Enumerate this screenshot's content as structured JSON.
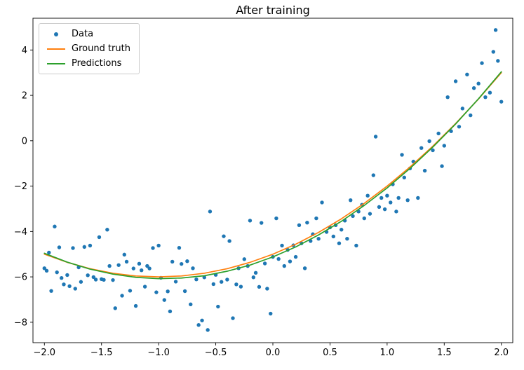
{
  "title": "After training",
  "legend": {
    "items": [
      {
        "label": "Data",
        "marker": "dot",
        "color": "#1f77b4"
      },
      {
        "label": "Ground truth",
        "marker": "line",
        "color": "#ff7f0e"
      },
      {
        "label": "Predictions",
        "marker": "line",
        "color": "#2ca02c"
      }
    ]
  },
  "chart_data": {
    "type": "scatter",
    "title": "After training",
    "xlabel": "",
    "ylabel": "",
    "xlim": [
      -2.1,
      2.1
    ],
    "ylim": [
      -8.9,
      5.4
    ],
    "grid": false,
    "legend_position": "upper left",
    "xticks": [
      -2.0,
      -1.5,
      -1.0,
      -0.5,
      0.0,
      0.5,
      1.0,
      1.5,
      2.0
    ],
    "xtick_labels": [
      "−2.0",
      "−1.5",
      "−1.0",
      "−0.5",
      "0.0",
      "0.5",
      "1.0",
      "1.5",
      "2.0"
    ],
    "yticks": [
      -8,
      -6,
      -4,
      -2,
      0,
      2,
      4
    ],
    "ytick_labels": [
      "−8",
      "−6",
      "−4",
      "−2",
      "0",
      "2",
      "4"
    ],
    "series": [
      {
        "name": "Data",
        "type": "scatter",
        "color": "#1f77b4",
        "points": [
          [
            -2.0,
            -5.62
          ],
          [
            -1.98,
            -5.73
          ],
          [
            -1.96,
            -4.93
          ],
          [
            -1.94,
            -6.62
          ],
          [
            -1.91,
            -3.78
          ],
          [
            -1.89,
            -5.8
          ],
          [
            -1.87,
            -4.7
          ],
          [
            -1.85,
            -6.05
          ],
          [
            -1.83,
            -6.33
          ],
          [
            -1.8,
            -5.92
          ],
          [
            -1.78,
            -6.41
          ],
          [
            -1.75,
            -4.73
          ],
          [
            -1.73,
            -6.52
          ],
          [
            -1.7,
            -5.58
          ],
          [
            -1.68,
            -6.22
          ],
          [
            -1.65,
            -4.68
          ],
          [
            -1.62,
            -5.93
          ],
          [
            -1.6,
            -4.62
          ],
          [
            -1.57,
            -6.01
          ],
          [
            -1.55,
            -6.12
          ],
          [
            -1.52,
            -4.25
          ],
          [
            -1.5,
            -6.1
          ],
          [
            -1.48,
            -6.13
          ],
          [
            -1.45,
            -3.92
          ],
          [
            -1.43,
            -5.52
          ],
          [
            -1.4,
            -6.14
          ],
          [
            -1.38,
            -7.38
          ],
          [
            -1.35,
            -5.48
          ],
          [
            -1.32,
            -6.83
          ],
          [
            -1.3,
            -5.02
          ],
          [
            -1.28,
            -5.33
          ],
          [
            -1.25,
            -6.61
          ],
          [
            -1.22,
            -5.63
          ],
          [
            -1.2,
            -7.28
          ],
          [
            -1.17,
            -5.42
          ],
          [
            -1.15,
            -5.71
          ],
          [
            -1.12,
            -6.43
          ],
          [
            -1.1,
            -5.52
          ],
          [
            -1.08,
            -5.63
          ],
          [
            -1.05,
            -4.73
          ],
          [
            -1.02,
            -6.68
          ],
          [
            -1.0,
            -4.62
          ],
          [
            -0.98,
            -6.04
          ],
          [
            -0.95,
            -7.02
          ],
          [
            -0.92,
            -6.64
          ],
          [
            -0.9,
            -7.52
          ],
          [
            -0.88,
            -5.33
          ],
          [
            -0.85,
            -6.21
          ],
          [
            -0.82,
            -4.72
          ],
          [
            -0.8,
            -5.43
          ],
          [
            -0.77,
            -6.63
          ],
          [
            -0.75,
            -5.31
          ],
          [
            -0.72,
            -7.21
          ],
          [
            -0.7,
            -5.62
          ],
          [
            -0.67,
            -6.11
          ],
          [
            -0.65,
            -8.12
          ],
          [
            -0.62,
            -7.92
          ],
          [
            -0.6,
            -6.02
          ],
          [
            -0.57,
            -8.34
          ],
          [
            -0.55,
            -3.12
          ],
          [
            -0.52,
            -6.32
          ],
          [
            -0.5,
            -5.91
          ],
          [
            -0.48,
            -7.31
          ],
          [
            -0.45,
            -6.22
          ],
          [
            -0.43,
            -4.21
          ],
          [
            -0.4,
            -6.12
          ],
          [
            -0.38,
            -4.42
          ],
          [
            -0.35,
            -7.82
          ],
          [
            -0.32,
            -6.33
          ],
          [
            -0.3,
            -5.62
          ],
          [
            -0.28,
            -6.43
          ],
          [
            -0.25,
            -5.22
          ],
          [
            -0.22,
            -5.52
          ],
          [
            -0.2,
            -3.52
          ],
          [
            -0.17,
            -6.02
          ],
          [
            -0.15,
            -5.82
          ],
          [
            -0.12,
            -6.44
          ],
          [
            -0.1,
            -3.62
          ],
          [
            -0.07,
            -5.41
          ],
          [
            -0.05,
            -6.52
          ],
          [
            -0.02,
            -7.62
          ],
          [
            0.0,
            -5.12
          ],
          [
            0.03,
            -3.42
          ],
          [
            0.05,
            -5.21
          ],
          [
            0.08,
            -4.62
          ],
          [
            0.1,
            -5.52
          ],
          [
            0.13,
            -4.81
          ],
          [
            0.15,
            -5.32
          ],
          [
            0.18,
            -4.61
          ],
          [
            0.2,
            -5.12
          ],
          [
            0.23,
            -3.72
          ],
          [
            0.25,
            -4.52
          ],
          [
            0.28,
            -5.62
          ],
          [
            0.3,
            -3.61
          ],
          [
            0.33,
            -4.42
          ],
          [
            0.35,
            -4.12
          ],
          [
            0.38,
            -3.42
          ],
          [
            0.4,
            -4.32
          ],
          [
            0.43,
            -2.72
          ],
          [
            0.47,
            -4.02
          ],
          [
            0.5,
            -3.82
          ],
          [
            0.53,
            -4.22
          ],
          [
            0.55,
            -3.72
          ],
          [
            0.58,
            -4.52
          ],
          [
            0.6,
            -3.92
          ],
          [
            0.63,
            -3.52
          ],
          [
            0.65,
            -4.32
          ],
          [
            0.68,
            -2.62
          ],
          [
            0.7,
            -3.32
          ],
          [
            0.73,
            -4.62
          ],
          [
            0.75,
            -3.12
          ],
          [
            0.78,
            -2.82
          ],
          [
            0.8,
            -3.42
          ],
          [
            0.83,
            -2.42
          ],
          [
            0.85,
            -3.22
          ],
          [
            0.88,
            -1.52
          ],
          [
            0.9,
            0.18
          ],
          [
            0.93,
            -2.92
          ],
          [
            0.95,
            -2.52
          ],
          [
            0.98,
            -3.02
          ],
          [
            1.0,
            -2.42
          ],
          [
            1.03,
            -2.72
          ],
          [
            1.05,
            -1.92
          ],
          [
            1.08,
            -3.12
          ],
          [
            1.1,
            -2.52
          ],
          [
            1.13,
            -0.62
          ],
          [
            1.15,
            -1.62
          ],
          [
            1.18,
            -2.62
          ],
          [
            1.2,
            -1.22
          ],
          [
            1.23,
            -0.92
          ],
          [
            1.27,
            -2.52
          ],
          [
            1.3,
            -0.32
          ],
          [
            1.33,
            -1.32
          ],
          [
            1.37,
            -0.02
          ],
          [
            1.4,
            -0.42
          ],
          [
            1.45,
            0.32
          ],
          [
            1.48,
            -1.12
          ],
          [
            1.5,
            -0.22
          ],
          [
            1.53,
            1.92
          ],
          [
            1.56,
            0.42
          ],
          [
            1.6,
            2.62
          ],
          [
            1.63,
            0.62
          ],
          [
            1.66,
            1.42
          ],
          [
            1.7,
            2.92
          ],
          [
            1.73,
            1.12
          ],
          [
            1.76,
            2.32
          ],
          [
            1.8,
            2.52
          ],
          [
            1.83,
            3.42
          ],
          [
            1.86,
            1.92
          ],
          [
            1.9,
            2.12
          ],
          [
            1.93,
            3.92
          ],
          [
            1.95,
            4.88
          ],
          [
            1.97,
            3.52
          ],
          [
            2.0,
            1.72
          ]
        ]
      },
      {
        "name": "Ground truth",
        "type": "line",
        "color": "#ff7f0e",
        "x": [
          -2.0,
          -1.8,
          -1.6,
          -1.4,
          -1.2,
          -1.0,
          -0.8,
          -0.6,
          -0.4,
          -0.2,
          0.0,
          0.2,
          0.4,
          0.6,
          0.8,
          1.0,
          1.2,
          1.4,
          1.6,
          1.8,
          2.0
        ],
        "y": [
          -5.0,
          -5.36,
          -5.64,
          -5.84,
          -5.96,
          -6.0,
          -5.96,
          -5.84,
          -5.64,
          -5.36,
          -5.0,
          -4.56,
          -4.04,
          -3.44,
          -2.76,
          -2.0,
          -1.16,
          -0.24,
          0.76,
          1.84,
          3.0
        ]
      },
      {
        "name": "Predictions",
        "type": "line",
        "color": "#2ca02c",
        "x": [
          -2.0,
          -1.8,
          -1.6,
          -1.4,
          -1.2,
          -1.0,
          -0.8,
          -0.6,
          -0.4,
          -0.2,
          0.0,
          0.2,
          0.4,
          0.6,
          0.8,
          1.0,
          1.2,
          1.4,
          1.6,
          1.8,
          2.0
        ],
        "y": [
          -4.96,
          -5.35,
          -5.66,
          -5.88,
          -6.02,
          -6.08,
          -6.05,
          -5.95,
          -5.75,
          -5.48,
          -5.12,
          -4.68,
          -4.15,
          -3.55,
          -2.85,
          -2.08,
          -1.22,
          -0.28,
          0.74,
          1.85,
          3.04
        ]
      }
    ]
  }
}
